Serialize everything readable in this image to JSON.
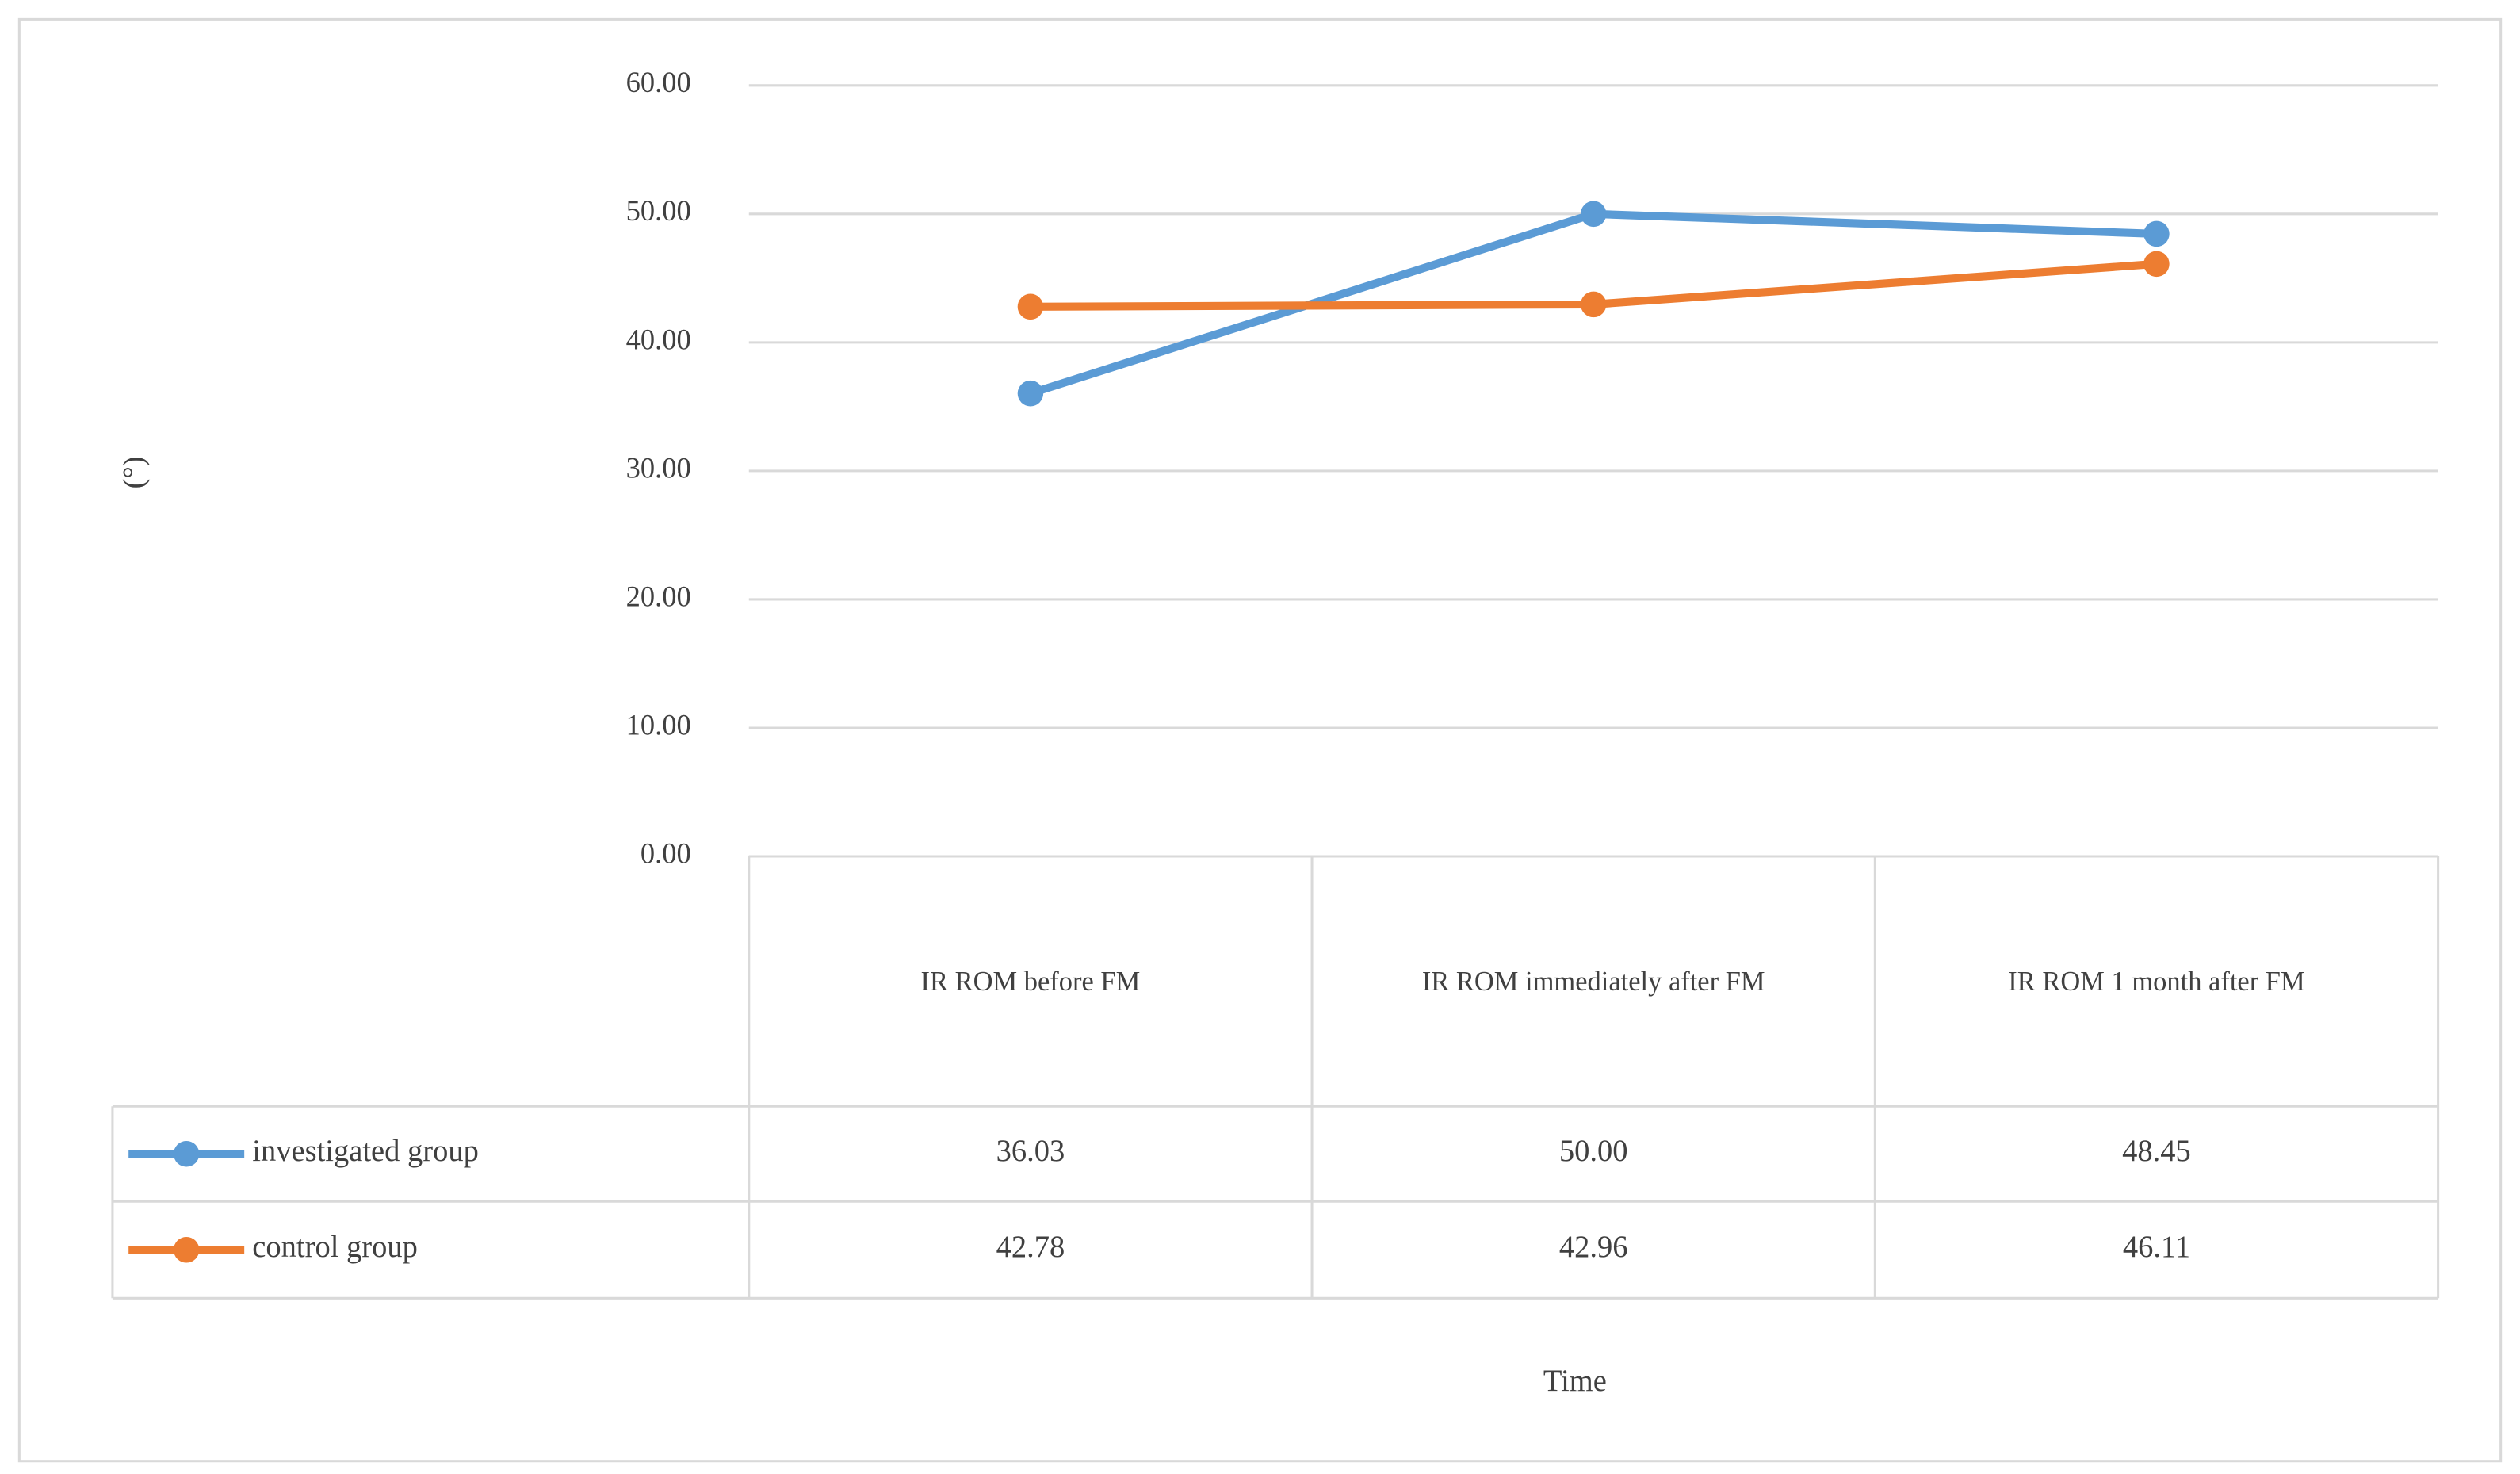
{
  "chart_data": {
    "type": "line",
    "x_label": "Time",
    "y_label": "(°)",
    "categories": [
      "IR ROM before FM",
      "IR ROM immediately after FM",
      "IR ROM 1 month after FM"
    ],
    "series": [
      {
        "name": "investigated group",
        "color": "#5b9bd5",
        "values": [
          36.03,
          50,
          48.45
        ],
        "value_labels": [
          "36.03",
          "50.00",
          "48.45"
        ]
      },
      {
        "name": "control group",
        "color": "#ed7d31",
        "values": [
          42.78,
          42.96,
          46.11
        ],
        "value_labels": [
          "42.78",
          "42.96",
          "46.11"
        ]
      }
    ],
    "ylim": [
      0,
      60
    ],
    "yticks": [
      {
        "value": 0,
        "label": "0.00"
      },
      {
        "value": 10,
        "label": "10.00"
      },
      {
        "value": 20,
        "label": "20.00"
      },
      {
        "value": 30,
        "label": "30.00"
      },
      {
        "value": 40,
        "label": "40.00"
      },
      {
        "value": 50,
        "label": "50.00"
      },
      {
        "value": 60,
        "label": "60.00"
      }
    ],
    "grid": true
  }
}
